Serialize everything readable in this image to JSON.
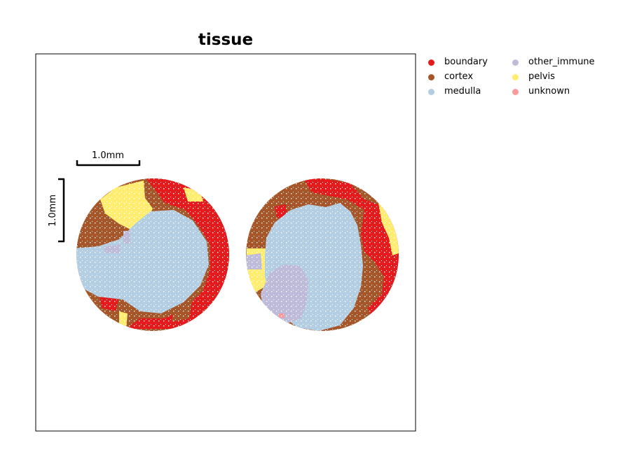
{
  "chart_data": {
    "type": "scatter",
    "title": "tissue",
    "axes": {
      "ticks": false,
      "frame": true
    },
    "scalebar": {
      "label": "1.0mm"
    },
    "legend": {
      "placement": "outside-right",
      "columns": 2,
      "entries": [
        {
          "label": "boundary",
          "color": "#e41a1c"
        },
        {
          "label": "cortex",
          "color": "#a65628"
        },
        {
          "label": "medulla",
          "color": "#b3cde3"
        },
        {
          "label": "other_immune",
          "color": "#bebada"
        },
        {
          "label": "pelvis",
          "color": "#ffed6f"
        },
        {
          "label": "unknown",
          "color": "#fb9a99"
        }
      ]
    },
    "regions": [
      {
        "name": "left-section",
        "center_mm": [
          1.2,
          1.35
        ],
        "radius_mm": 1.2,
        "composition": [
          "medulla",
          "cortex",
          "boundary",
          "pelvis",
          "other_immune",
          "unknown"
        ]
      },
      {
        "name": "right-section",
        "center_mm": [
          3.9,
          1.35
        ],
        "radius_mm": 1.2,
        "composition": [
          "medulla",
          "cortex",
          "boundary",
          "other_immune",
          "pelvis",
          "unknown"
        ]
      }
    ]
  }
}
